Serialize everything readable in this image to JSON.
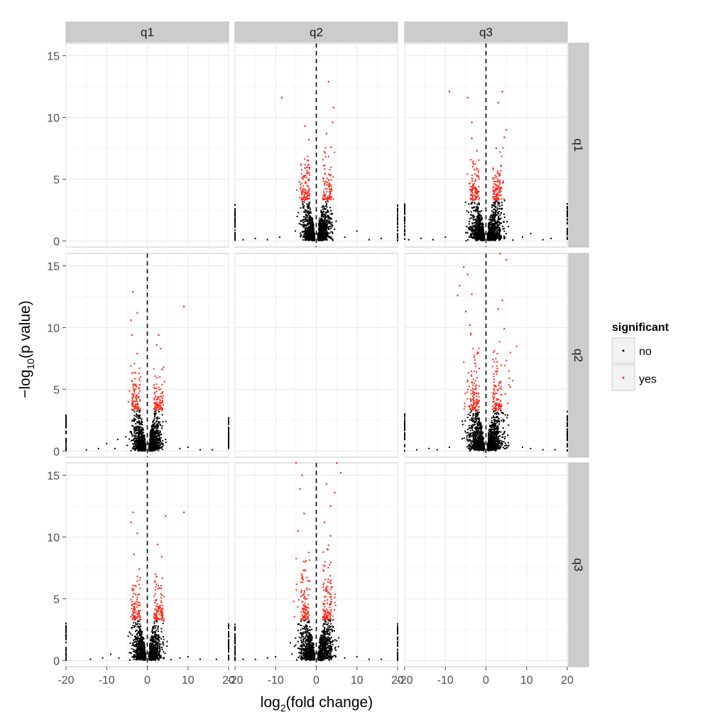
{
  "chart_data": {
    "type": "scatter",
    "facet_columns": [
      "q1",
      "q2",
      "q3"
    ],
    "facet_rows": [
      "q1",
      "q2",
      "q3"
    ],
    "x_ticks": [
      -20,
      -10,
      0,
      10,
      20
    ],
    "y_ticks": [
      0,
      5,
      10,
      15
    ],
    "xlim": [
      -20,
      20
    ],
    "ylim": [
      -0.5,
      16
    ],
    "xlabel_main": "log",
    "xlabel_sub": "2",
    "xlabel_tail": "(fold change)",
    "ylabel_head": "−log",
    "ylabel_sub": "10",
    "ylabel_tail": "(p value)",
    "reference_line": {
      "x": 0,
      "style": "dashed"
    },
    "grid": true,
    "legend": {
      "title": "significant",
      "placement": "right",
      "entries": [
        {
          "label": "no",
          "color": "#000000"
        },
        {
          "label": "yes",
          "color": "#ff2a1a"
        }
      ]
    },
    "significance_threshold": 3.3,
    "panels": [
      {
        "row": "q1",
        "col": "q1",
        "empty": true
      },
      {
        "row": "q1",
        "col": "q2",
        "empty": false,
        "max_y": 13,
        "spread": 2.6,
        "red_points": [
          [
            -8.5,
            11.6
          ],
          [
            3,
            12.9
          ],
          [
            4.2,
            10.8
          ],
          [
            -2.8,
            9.3
          ],
          [
            2.5,
            8.7
          ],
          [
            4,
            9.6
          ],
          [
            -1.8,
            8.2
          ],
          [
            3.6,
            7.6
          ]
        ],
        "black_points": [
          [
            -18,
            0.1
          ],
          [
            -15,
            0.2
          ],
          [
            -12,
            0.1
          ],
          [
            -9,
            0.3
          ],
          [
            7,
            0.3
          ],
          [
            10,
            0.8
          ],
          [
            13,
            0.1
          ],
          [
            16,
            0.2
          ],
          [
            -20,
            1.6
          ],
          [
            20,
            1.8
          ],
          [
            -20,
            2.6
          ],
          [
            20,
            2.5
          ],
          [
            -20,
            0.5
          ],
          [
            20,
            0.4
          ]
        ]
      },
      {
        "row": "q1",
        "col": "q3",
        "empty": false,
        "max_y": 12.1,
        "spread": 3.0,
        "red_points": [
          [
            -9,
            12.1
          ],
          [
            -4.5,
            11.6
          ],
          [
            4,
            12.1
          ],
          [
            3,
            11.2
          ],
          [
            -3.5,
            9.6
          ],
          [
            5,
            9.0
          ],
          [
            -3.5,
            8.3
          ],
          [
            4.5,
            8.4
          ],
          [
            2.5,
            7.5
          ],
          [
            -2.2,
            7.3
          ]
        ],
        "black_points": [
          [
            -19,
            0.1
          ],
          [
            -16,
            0.2
          ],
          [
            -13,
            0.1
          ],
          [
            -10,
            0.3
          ],
          [
            9,
            0.3
          ],
          [
            11,
            0.6
          ],
          [
            14,
            0.1
          ],
          [
            16,
            0.2
          ],
          [
            -20,
            1.7
          ],
          [
            20,
            2.1
          ],
          [
            -20,
            2.9
          ],
          [
            20,
            3.0
          ],
          [
            -20,
            0.5
          ],
          [
            20,
            0.5
          ]
        ]
      },
      {
        "row": "q2",
        "col": "q1",
        "empty": false,
        "max_y": 12.9,
        "spread": 2.6,
        "red_points": [
          [
            -3.5,
            12.9
          ],
          [
            -2.5,
            11.2
          ],
          [
            9,
            11.7
          ],
          [
            -4,
            10.6
          ],
          [
            -3.8,
            9.4
          ],
          [
            2.8,
            9.4
          ],
          [
            2.3,
            8.6
          ],
          [
            3.3,
            8.3
          ],
          [
            -2.5,
            7.9
          ]
        ],
        "black_points": [
          [
            -15,
            0.1
          ],
          [
            -12,
            0.2
          ],
          [
            -10,
            0.6
          ],
          [
            -8,
            0.2
          ],
          [
            8,
            0.2
          ],
          [
            10,
            0.3
          ],
          [
            13,
            0.1
          ],
          [
            16,
            0.1
          ],
          [
            -20,
            1.6
          ],
          [
            20,
            1.5
          ],
          [
            -20,
            2.8
          ],
          [
            20,
            2.6
          ],
          [
            -20,
            0.6
          ],
          [
            20,
            0.4
          ]
        ]
      },
      {
        "row": "q2",
        "col": "q2",
        "empty": true
      },
      {
        "row": "q2",
        "col": "q3",
        "empty": false,
        "max_y": 16,
        "spread": 3.4,
        "red_points": [
          [
            -5.5,
            14.9
          ],
          [
            -6.5,
            13.4
          ],
          [
            -4.5,
            14.3
          ],
          [
            3.5,
            16
          ],
          [
            5,
            15.5
          ],
          [
            -7,
            12.6
          ],
          [
            -3.5,
            12.7
          ],
          [
            4,
            12.2
          ],
          [
            -5,
            11.3
          ],
          [
            3,
            11.5
          ],
          [
            6,
            5.2
          ],
          [
            -4,
            10.2
          ],
          [
            4.5,
            9.9
          ]
        ],
        "black_points": [
          [
            -17,
            0.1
          ],
          [
            -14,
            0.2
          ],
          [
            -12,
            0.1
          ],
          [
            -9,
            0.3
          ],
          [
            9,
            0.3
          ],
          [
            11,
            0.2
          ],
          [
            14,
            0.1
          ],
          [
            17,
            0.1
          ],
          [
            -20,
            1.7
          ],
          [
            20,
            2.0
          ],
          [
            -20,
            3.0
          ],
          [
            20,
            3.2
          ],
          [
            -20,
            0.5
          ],
          [
            20,
            0.5
          ]
        ]
      },
      {
        "row": "q3",
        "col": "q1",
        "empty": false,
        "max_y": 12.1,
        "spread": 2.6,
        "red_points": [
          [
            -3.5,
            12
          ],
          [
            9,
            12
          ],
          [
            4.5,
            11.7
          ],
          [
            -4,
            11.2
          ],
          [
            -2.5,
            10.3
          ],
          [
            2.5,
            9.4
          ],
          [
            -3.3,
            8.6
          ],
          [
            3.5,
            8.4
          ],
          [
            -2,
            7.4
          ],
          [
            2,
            7.0
          ]
        ],
        "black_points": [
          [
            -14,
            0.1
          ],
          [
            -11,
            0.2
          ],
          [
            -9,
            0.5
          ],
          [
            -7,
            0.2
          ],
          [
            8,
            0.2
          ],
          [
            10,
            0.3
          ],
          [
            13,
            0.1
          ],
          [
            17,
            0.1
          ],
          [
            -20,
            1.8
          ],
          [
            20,
            1.6
          ],
          [
            -20,
            2.8
          ],
          [
            20,
            2.6
          ],
          [
            -20,
            0.5
          ],
          [
            20,
            0.4
          ]
        ]
      },
      {
        "row": "q3",
        "col": "q2",
        "empty": false,
        "max_y": 16,
        "spread": 3.2,
        "red_points": [
          [
            -5,
            16
          ],
          [
            5,
            16
          ],
          [
            -3.5,
            15
          ],
          [
            6,
            15.2
          ],
          [
            2.5,
            14.3
          ],
          [
            4.5,
            13.6
          ],
          [
            -4,
            13.9
          ],
          [
            3.5,
            12.5
          ],
          [
            -3,
            11.9
          ],
          [
            2,
            11.2
          ],
          [
            -4.5,
            10.5
          ],
          [
            3.5,
            10.1
          ]
        ],
        "black_points": [
          [
            -18,
            0.1
          ],
          [
            -15,
            0.1
          ],
          [
            -12,
            0.2
          ],
          [
            -10,
            0.3
          ],
          [
            7,
            0.2
          ],
          [
            10,
            0.3
          ],
          [
            13,
            0.1
          ],
          [
            16,
            0.1
          ],
          [
            -20,
            1.7
          ],
          [
            20,
            1.8
          ],
          [
            -20,
            2.7
          ],
          [
            20,
            2.8
          ],
          [
            -20,
            0.5
          ],
          [
            20,
            0.5
          ]
        ]
      },
      {
        "row": "q3",
        "col": "q3",
        "empty": true
      }
    ]
  }
}
